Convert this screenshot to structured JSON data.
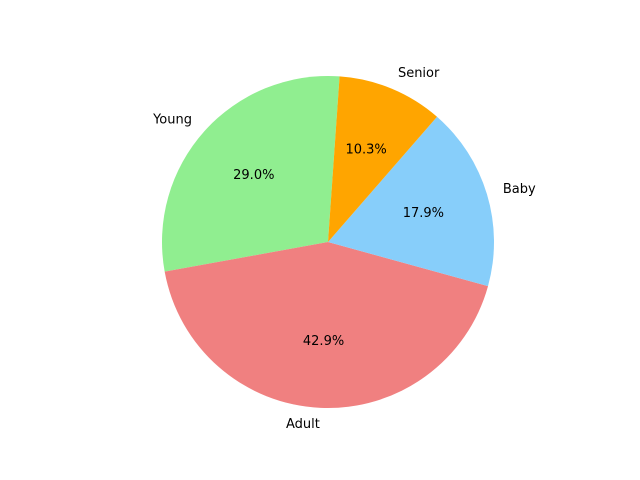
{
  "chart_data": {
    "type": "pie",
    "title": "",
    "slices": [
      {
        "label": "Young",
        "value": 29.0,
        "pct_label": "29.0%",
        "color": "#90ee90"
      },
      {
        "label": "Adult",
        "value": 42.9,
        "pct_label": "42.9%",
        "color": "#f08080"
      },
      {
        "label": "Baby",
        "value": 17.9,
        "pct_label": "17.9%",
        "color": "#87cefa"
      },
      {
        "label": "Senior",
        "value": 10.3,
        "pct_label": "10.3%",
        "color": "#ffa500"
      }
    ],
    "start_angle_deg": 86,
    "direction": "counterclockwise",
    "legend": "none"
  }
}
